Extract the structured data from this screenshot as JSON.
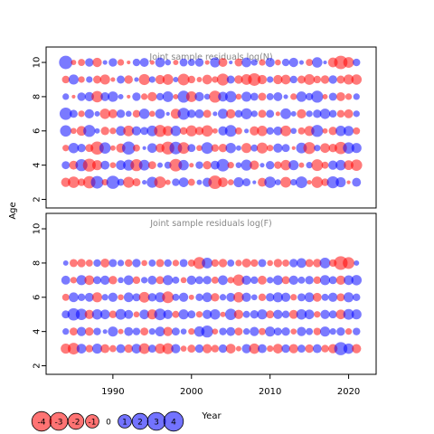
{
  "colors": {
    "negative": "#ff0000",
    "positive": "#0000ff",
    "frame": "#000000",
    "panel_title": "#888888"
  },
  "chart_data": {
    "type": "scatter",
    "subtype": "bubble",
    "ylabel": "Age",
    "xlabel": "Year",
    "shared_x": {
      "ticks": [
        1990,
        2000,
        2010,
        2020
      ],
      "range": [
        1981.5,
        2023.5
      ]
    },
    "shared_y": {
      "ticks": [
        2,
        4,
        6,
        8,
        10
      ],
      "range": [
        1.5,
        10.9
      ]
    },
    "years": [
      1984,
      1985,
      1986,
      1987,
      1988,
      1989,
      1990,
      1991,
      1992,
      1993,
      1994,
      1995,
      1996,
      1997,
      1998,
      1999,
      2000,
      2001,
      2002,
      2003,
      2004,
      2005,
      2006,
      2007,
      2008,
      2009,
      2010,
      2011,
      2012,
      2013,
      2014,
      2015,
      2016,
      2017,
      2018,
      2019,
      2020,
      2021
    ],
    "panels": [
      {
        "title": "Joint sample residuals log(N)",
        "ages": [
          3,
          4,
          5,
          6,
          7,
          8,
          9,
          10
        ],
        "residuals": [
          [
            -1.2,
            -1.8,
            -0.8,
            -2.1,
            2.2,
            -0.6,
            2.4,
            0.7,
            -1.7,
            -0.9,
            0.3,
            1.7,
            -1.9,
            -0.4,
            0.8,
            1.3,
            -0.7,
            0.4,
            1.2,
            -2.5,
            -1.3,
            -0.5,
            1.4,
            0.9,
            0.2,
            -1.1,
            1.8,
            0.5,
            -1.6,
            0.6,
            1.9,
            -0.3,
            -1.8,
            -0.8,
            2.0,
            1.4,
            -0.2,
            1.1
          ],
          [
            0.9,
            -1.1,
            2.0,
            -2.3,
            -1.4,
            1.1,
            -0.5,
            1.3,
            1.7,
            -2.0,
            1.6,
            -0.9,
            0.4,
            0.7,
            -2.2,
            1.5,
            -0.3,
            0.8,
            -1.0,
            1.1,
            2.2,
            -0.6,
            0.5,
            1.7,
            -1.2,
            0.3,
            1.0,
            -0.8,
            -1.5,
            1.4,
            -0.4,
            0.6,
            -1.9,
            -0.7,
            1.2,
            1.5,
            -1.3,
            -1.8
          ],
          [
            -0.6,
            1.5,
            1.0,
            -0.9,
            -2.4,
            1.8,
            -0.4,
            -1.2,
            2.4,
            -0.7,
            0.2,
            1.3,
            -1.1,
            -2.3,
            2.2,
            -1.9,
            0.9,
            -0.5,
            1.9,
            -0.8,
            -1.0,
            1.5,
            0.4,
            -1.4,
            0.7,
            -1.7,
            -0.6,
            1.2,
            0.9,
            -0.2,
            1.6,
            -2.0,
            0.6,
            -1.3,
            -1.0,
            -2.1,
            1.8,
            1.4
          ],
          [
            1.8,
            -0.5,
            -1.3,
            2.0,
            0.4,
            -1.0,
            -0.6,
            1.3,
            -1.6,
            1.2,
            0.9,
            1.6,
            -2.0,
            -1.4,
            1.5,
            -0.8,
            -1.7,
            -1.0,
            -1.8,
            -0.4,
            1.2,
            1.9,
            -0.7,
            0.3,
            -1.2,
            -1.5,
            0.8,
            1.1,
            -1.6,
            0.5,
            -0.7,
            -1.4,
            2.0,
            -0.4,
            -1.0,
            1.5,
            1.4,
            -0.7
          ],
          [
            2.1,
            0.9,
            -0.6,
            1.2,
            0.4,
            -1.5,
            -1.1,
            1.0,
            0.5,
            -0.8,
            1.5,
            -0.5,
            1.3,
            0.2,
            -1.4,
            2.0,
            1.0,
            1.1,
            -0.9,
            0.3,
            1.4,
            -1.2,
            0.8,
            1.7,
            0.6,
            -0.9,
            0.9,
            -0.3,
            1.6,
            0.4,
            -1.2,
            0.6,
            1.0,
            1.5,
            0.8,
            -0.8,
            -1.1,
            0.6
          ],
          [
            0.6,
            -0.2,
            1.0,
            1.2,
            -1.8,
            1.1,
            1.5,
            0.4,
            -0.2,
            1.0,
            -0.6,
            -1.2,
            0.8,
            1.6,
            -0.4,
            2.0,
            -1.6,
            1.2,
            0.5,
            -2.0,
            1.3,
            1.8,
            -0.5,
            1.4,
            0.9,
            -0.9,
            0.7,
            1.1,
            0.3,
            -0.6,
            1.5,
            0.8,
            2.0,
            -0.4,
            0.9,
            -1.1,
            -0.6,
            0.6
          ],
          [
            -0.8,
            1.4,
            -0.6,
            0.6,
            -0.9,
            -1.4,
            -0.3,
            0.9,
            -1.0,
            0.3,
            -1.7,
            0.6,
            -1.2,
            -1.6,
            0.4,
            -1.9,
            -0.8,
            -0.4,
            -1.3,
            -0.6,
            -2.0,
            0.9,
            -1.0,
            -1.6,
            -2.2,
            -1.2,
            0.6,
            -1.2,
            -1.3,
            0.8,
            -0.9,
            -1.6,
            -0.8,
            -1.0,
            1.0,
            -0.9,
            -1.4,
            -1.5
          ],
          [
            2.5,
            -0.4,
            -0.7,
            1.0,
            -1.2,
            0.3,
            1.0,
            -0.6,
            -0.2,
            0.8,
            1.1,
            -0.3,
            1.3,
            0.5,
            -0.4,
            0.9,
            0.7,
            1.0,
            -0.3,
            1.4,
            -1.1,
            0.2,
            -0.9,
            1.3,
            0.6,
            -0.6,
            1.2,
            -0.5,
            0.8,
            1.2,
            0.3,
            -0.7,
            1.5,
            0.2,
            -1.3,
            -2.5,
            -1.6,
            0.8
          ]
        ]
      },
      {
        "title": "Joint sample residuals log(F)",
        "ages": [
          3,
          4,
          5,
          6,
          7,
          8
        ],
        "residuals": [
          [
            -1.4,
            -1.9,
            1.3,
            -0.8,
            1.4,
            -1.1,
            -0.7,
            1.1,
            -1.0,
            1.3,
            -1.6,
            0.9,
            -1.4,
            -1.7,
            1.2,
            -0.5,
            -0.9,
            1.0,
            -1.2,
            -0.8,
            1.0,
            -1.3,
            -0.4,
            1.2,
            -1.5,
            1.1,
            -0.6,
            -1.3,
            1.0,
            -1.2,
            0.9,
            -1.0,
            1.1,
            -0.8,
            -1.2,
            2.4,
            1.5,
            -1.2
          ],
          [
            0.6,
            -0.9,
            1.2,
            -1.0,
            0.8,
            0.3,
            1.4,
            -0.4,
            1.1,
            0.8,
            -0.9,
            0.6,
            1.3,
            -1.2,
            0.9,
            0.5,
            -0.6,
            1.5,
            2.0,
            -0.5,
            0.8,
            1.1,
            -0.9,
            0.6,
            1.2,
            -0.7,
            1.4,
            0.9,
            1.0,
            -0.5,
            1.2,
            0.7,
            -0.8,
            1.4,
            0.6,
            1.0,
            -0.6,
            0.8
          ],
          [
            0.9,
            2.1,
            1.8,
            -1.2,
            1.5,
            1.3,
            -0.8,
            1.6,
            1.1,
            -0.5,
            1.3,
            -1.4,
            1.9,
            1.2,
            -0.7,
            1.4,
            0.9,
            -0.6,
            1.2,
            1.5,
            -0.4,
            1.8,
            -1.2,
            0.7,
            1.0,
            1.4,
            -0.9,
            1.2,
            0.8,
            -1.1,
            1.5,
            1.3,
            -0.6,
            1.2,
            0.9,
            -1.3,
            1.6,
            1.4
          ],
          [
            -0.7,
            1.3,
            0.8,
            1.1,
            -1.4,
            0.6,
            1.2,
            -0.5,
            1.3,
            0.9,
            -1.6,
            1.0,
            1.4,
            -1.9,
            0.7,
            1.2,
            -0.4,
            0.8,
            1.3,
            -1.0,
            0.6,
            1.1,
            -1.5,
            1.2,
            0.5,
            -0.8,
            1.0,
            1.4,
            1.2,
            -0.6,
            0.9,
            1.3,
            -1.1,
            0.7,
            1.2,
            -0.9,
            1.4,
            0.8
          ],
          [
            1.1,
            -0.6,
            1.4,
            -1.3,
            0.9,
            1.2,
            -1.0,
            0.5,
            1.3,
            -0.8,
            0.6,
            1.1,
            -0.9,
            1.4,
            0.7,
            -0.5,
            1.2,
            0.9,
            1.0,
            -0.7,
            1.3,
            -0.6,
            -1.8,
            1.2,
            0.8,
            -1.1,
            0.6,
            1.3,
            -0.9,
            1.2,
            0.7,
            1.0,
            -0.8,
            1.4,
            0.9,
            -1.2,
            1.3,
            1.5
          ],
          [
            0.4,
            -0.9,
            -1.0,
            -0.7,
            0.8,
            -1.1,
            0.9,
            0.6,
            -0.8,
            1.0,
            -0.5,
            0.7,
            -0.9,
            0.8,
            -0.6,
            0.9,
            -0.7,
            -2.0,
            1.6,
            -0.8,
            -1.0,
            0.7,
            -0.6,
            -1.1,
            -0.8,
            0.9,
            -0.5,
            -1.0,
            -0.7,
            1.0,
            1.3,
            -0.9,
            -1.0,
            1.6,
            -0.8,
            -2.6,
            -1.9,
            0.4
          ]
        ]
      }
    ],
    "legend": {
      "placement": "bottom-left",
      "labels": [
        "-4",
        "-3",
        "-2",
        "-1",
        "0",
        "1",
        "2",
        "3",
        "4"
      ],
      "values": [
        -4,
        -3,
        -2,
        -1,
        0,
        1,
        2,
        3,
        4
      ]
    }
  }
}
